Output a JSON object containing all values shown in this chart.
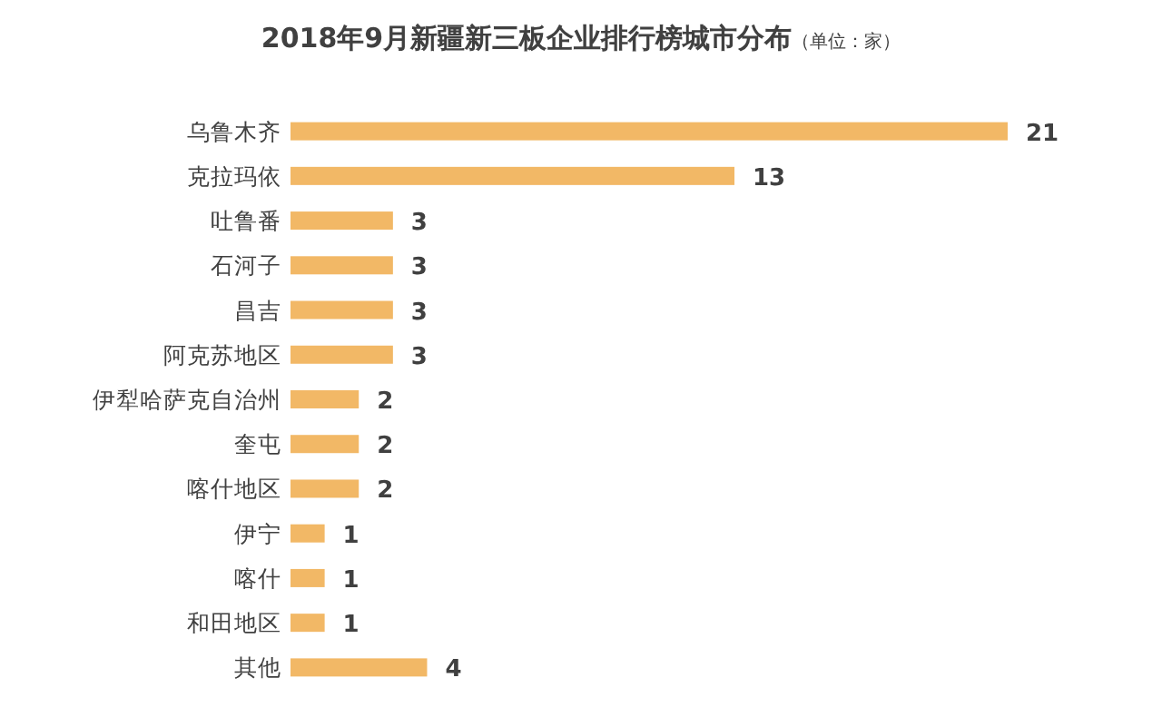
{
  "chart_data": {
    "type": "bar",
    "orientation": "horizontal",
    "title": "2018年9月新疆新三板企业排行榜城市分布",
    "subtitle": "（单位：家）",
    "categories": [
      "乌鲁木齐",
      "克拉玛依",
      "吐鲁番",
      "石河子",
      "昌吉",
      "阿克苏地区",
      "伊犁哈萨克自治州",
      "奎屯",
      "喀什地区",
      "伊宁",
      "喀什",
      "和田地区",
      "其他"
    ],
    "values": [
      21,
      13,
      3,
      3,
      3,
      3,
      2,
      2,
      2,
      1,
      1,
      1,
      4
    ],
    "color": "#f2b866",
    "data_labels": true
  }
}
